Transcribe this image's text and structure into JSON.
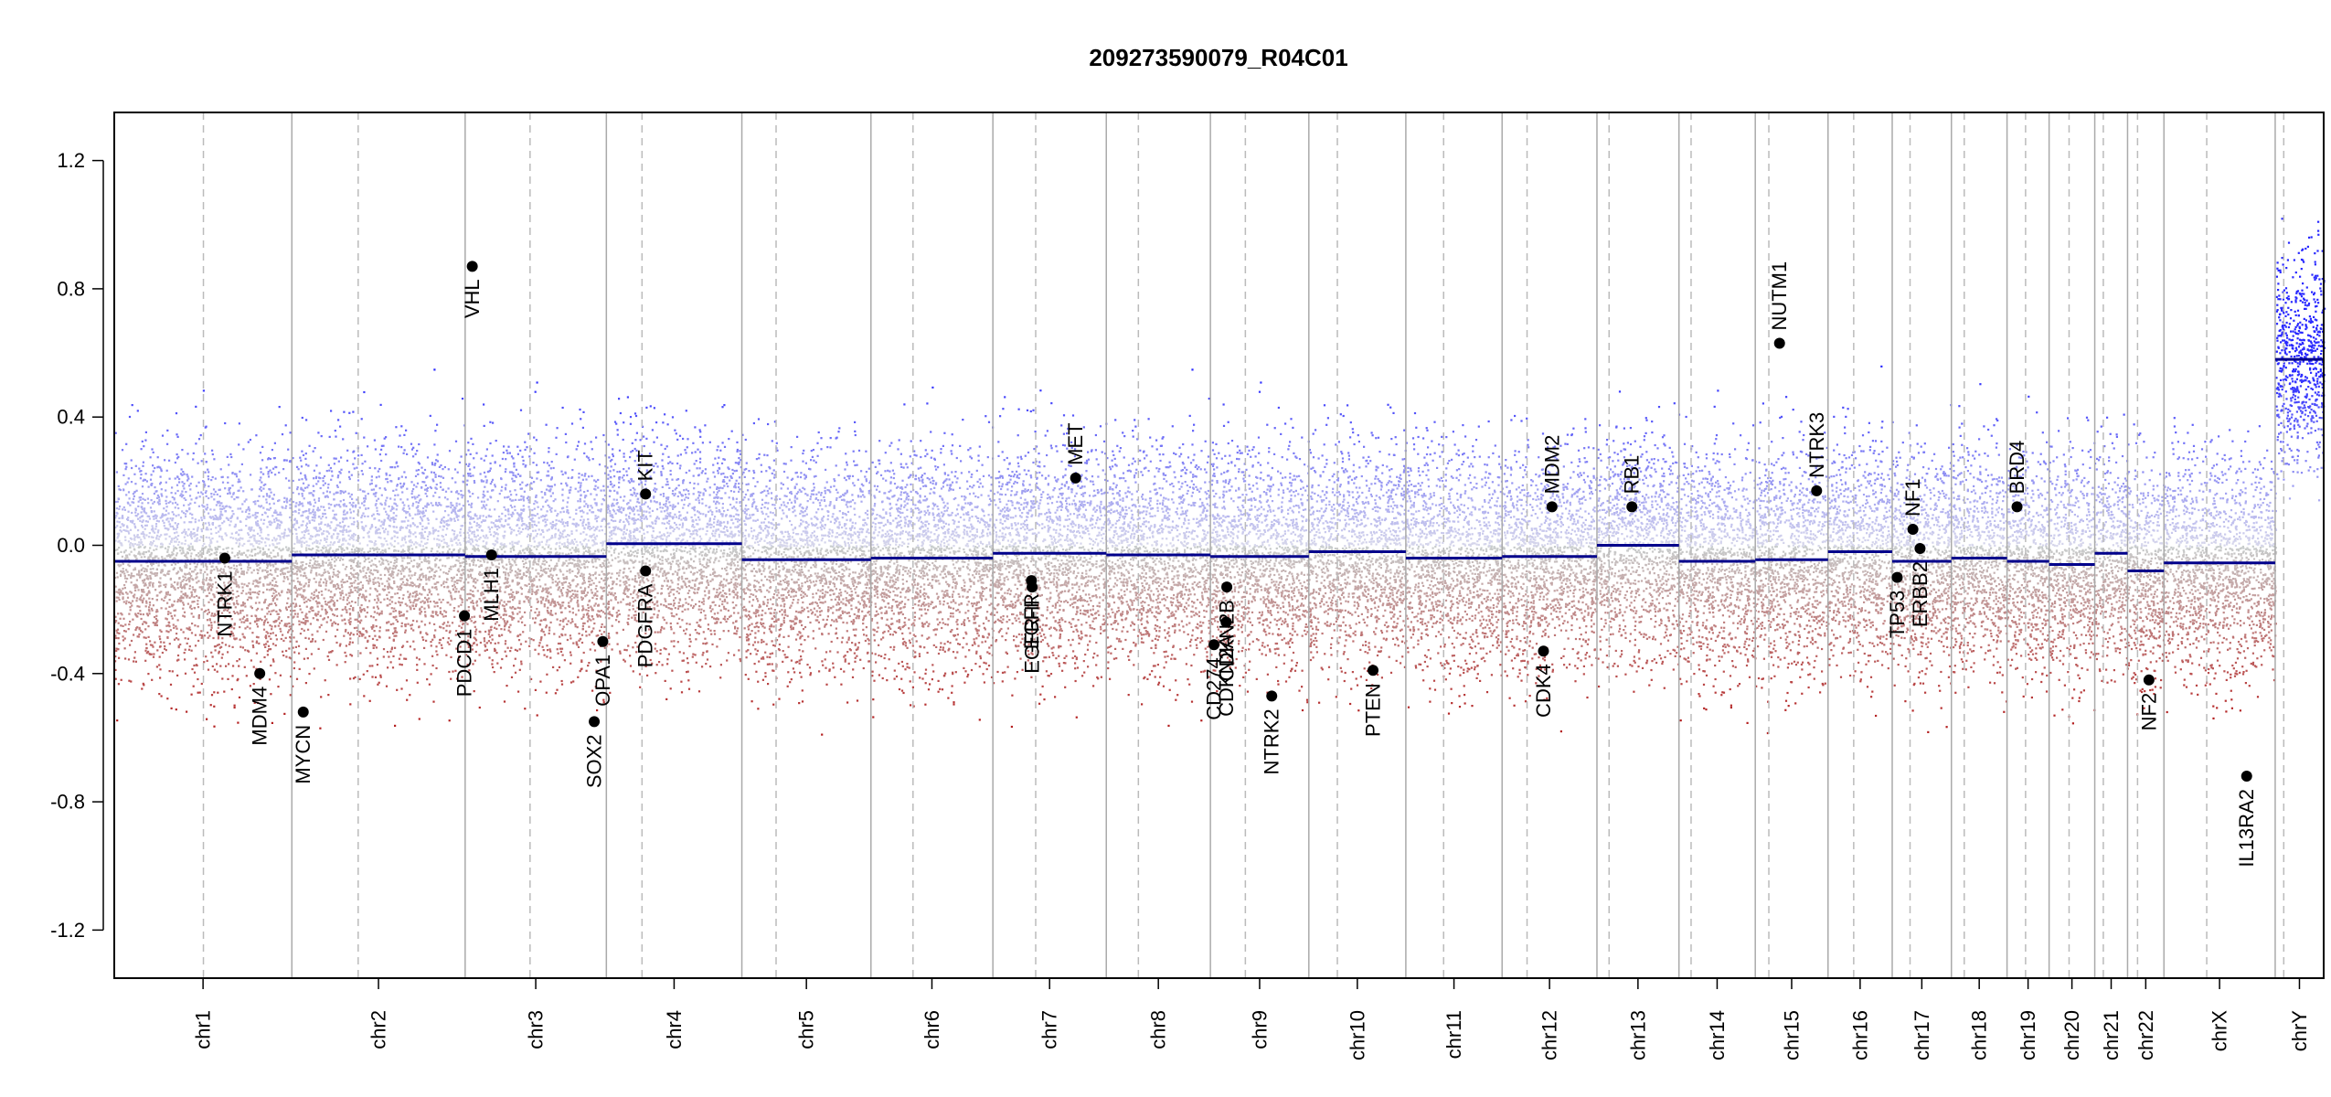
{
  "chart_data": {
    "type": "scatter",
    "title": "209273590079_R04C01",
    "xlabel": "",
    "ylabel": "",
    "ylim": [
      -1.35,
      1.35
    ],
    "y_ticks": [
      -1.2,
      -0.8,
      -0.4,
      0.0,
      0.4,
      0.8,
      1.2
    ],
    "y_tick_labels": [
      "-1.2",
      "-0.8",
      "-0.4",
      "0.0",
      "0.4",
      "0.8",
      "1.2"
    ],
    "genome_range": [
      0,
      3098
    ],
    "grid": false,
    "colors": {
      "gain": "#0000cc",
      "loss": "#b22222",
      "segment": "#00008b",
      "chrom_border": "#aaaaaa",
      "centromere": "#bbbbbb"
    },
    "chromosomes": [
      {
        "name": "chr1",
        "start": 0,
        "end": 249,
        "centro": 125,
        "segment": -0.05
      },
      {
        "name": "chr2",
        "start": 249,
        "end": 492,
        "centro": 342,
        "segment": -0.03
      },
      {
        "name": "chr3",
        "start": 492,
        "end": 690,
        "centro": 583,
        "segment": -0.035
      },
      {
        "name": "chr4",
        "start": 690,
        "end": 880,
        "centro": 740,
        "segment": 0.005
      },
      {
        "name": "chr5",
        "start": 880,
        "end": 1061,
        "centro": 928,
        "segment": -0.045
      },
      {
        "name": "chr6",
        "start": 1061,
        "end": 1232,
        "centro": 1120,
        "segment": -0.04
      },
      {
        "name": "chr7",
        "start": 1232,
        "end": 1391,
        "centro": 1292,
        "segment": -0.025
      },
      {
        "name": "chr8",
        "start": 1391,
        "end": 1537,
        "centro": 1436,
        "segment": -0.03
      },
      {
        "name": "chr9",
        "start": 1537,
        "end": 1675,
        "centro": 1586,
        "segment": -0.035
      },
      {
        "name": "chr10",
        "start": 1675,
        "end": 1811,
        "centro": 1715,
        "segment": -0.02
      },
      {
        "name": "chr11",
        "start": 1811,
        "end": 1946,
        "centro": 1864,
        "segment": -0.04
      },
      {
        "name": "chr12",
        "start": 1946,
        "end": 2079,
        "centro": 1981,
        "segment": -0.035
      },
      {
        "name": "chr13",
        "start": 2079,
        "end": 2194,
        "centro": 2096,
        "segment": 0.0
      },
      {
        "name": "chr14",
        "start": 2194,
        "end": 2301,
        "centro": 2211,
        "segment": -0.05
      },
      {
        "name": "chr15",
        "start": 2301,
        "end": 2403,
        "centro": 2320,
        "segment": -0.045
      },
      {
        "name": "chr16",
        "start": 2403,
        "end": 2493,
        "centro": 2439,
        "segment": -0.02
      },
      {
        "name": "chr17",
        "start": 2493,
        "end": 2576,
        "centro": 2518,
        "segment": -0.05
      },
      {
        "name": "chr18",
        "start": 2576,
        "end": 2654,
        "centro": 2594,
        "segment": -0.04
      },
      {
        "name": "chr19",
        "start": 2654,
        "end": 2713,
        "centro": 2680,
        "segment": -0.05
      },
      {
        "name": "chr20",
        "start": 2713,
        "end": 2777,
        "centro": 2741,
        "segment": -0.06
      },
      {
        "name": "chr21",
        "start": 2777,
        "end": 2823,
        "centro": 2789,
        "segment": -0.025
      },
      {
        "name": "chr22",
        "start": 2823,
        "end": 2874,
        "centro": 2837,
        "segment": -0.08
      },
      {
        "name": "chrX",
        "start": 2874,
        "end": 3030,
        "centro": 2934,
        "segment": -0.055
      },
      {
        "name": "chrY",
        "start": 3030,
        "end": 3098,
        "centro": 3042,
        "segment": 0.58
      }
    ],
    "genes": [
      {
        "name": "NTRK1",
        "pos": 155,
        "value": -0.04,
        "label_side": "below"
      },
      {
        "name": "MDM4",
        "pos": 204,
        "value": -0.4,
        "label_side": "below"
      },
      {
        "name": "MYCN",
        "pos": 265,
        "value": -0.52,
        "label_side": "below"
      },
      {
        "name": "VHL",
        "pos": 502,
        "value": 0.87,
        "label_side": "below"
      },
      {
        "name": "PDCD1",
        "pos": 491,
        "value": -0.22,
        "label_side": "below"
      },
      {
        "name": "MLH1",
        "pos": 529,
        "value": -0.03,
        "label_side": "below"
      },
      {
        "name": "SOX2",
        "pos": 673,
        "value": -0.55,
        "label_side": "below"
      },
      {
        "name": "OPA1",
        "pos": 685,
        "value": -0.3,
        "label_side": "below"
      },
      {
        "name": "KIT",
        "pos": 745,
        "value": 0.16,
        "label_side": "above"
      },
      {
        "name": "PDGFRA",
        "pos": 745,
        "value": -0.08,
        "label_side": "below"
      },
      {
        "name": "EGFR",
        "pos": 1286,
        "value": -0.11,
        "label_side": "below"
      },
      {
        "name": "EGFR-II",
        "pos": 1287,
        "value": -0.13,
        "label_side": "below"
      },
      {
        "name": "MET",
        "pos": 1348,
        "value": 0.21,
        "label_side": "above"
      },
      {
        "name": "CD274",
        "pos": 1542,
        "value": -0.31,
        "label_side": "below"
      },
      {
        "name": "CDKN2A",
        "pos": 1559,
        "value": -0.24,
        "label_side": "below"
      },
      {
        "name": "CDKN2B",
        "pos": 1560,
        "value": -0.13,
        "label_side": "below"
      },
      {
        "name": "NTRK2",
        "pos": 1623,
        "value": -0.47,
        "label_side": "below"
      },
      {
        "name": "PTEN",
        "pos": 1765,
        "value": -0.39,
        "label_side": "below"
      },
      {
        "name": "MDM2",
        "pos": 2016,
        "value": 0.12,
        "label_side": "above"
      },
      {
        "name": "CDK4",
        "pos": 2004,
        "value": -0.33,
        "label_side": "below"
      },
      {
        "name": "RB1",
        "pos": 2128,
        "value": 0.12,
        "label_side": "above"
      },
      {
        "name": "NUTM1",
        "pos": 2335,
        "value": 0.63,
        "label_side": "above"
      },
      {
        "name": "NTRK3",
        "pos": 2387,
        "value": 0.17,
        "label_side": "above"
      },
      {
        "name": "TP53",
        "pos": 2500,
        "value": -0.1,
        "label_side": "below"
      },
      {
        "name": "NF1",
        "pos": 2522,
        "value": 0.05,
        "label_side": "above"
      },
      {
        "name": "ERBB2",
        "pos": 2532,
        "value": -0.01,
        "label_side": "below"
      },
      {
        "name": "BRD4",
        "pos": 2668,
        "value": 0.12,
        "label_side": "above"
      },
      {
        "name": "NF2",
        "pos": 2853,
        "value": -0.42,
        "label_side": "below"
      },
      {
        "name": "IL13RA2",
        "pos": 2990,
        "value": -0.72,
        "label_side": "below"
      }
    ]
  }
}
